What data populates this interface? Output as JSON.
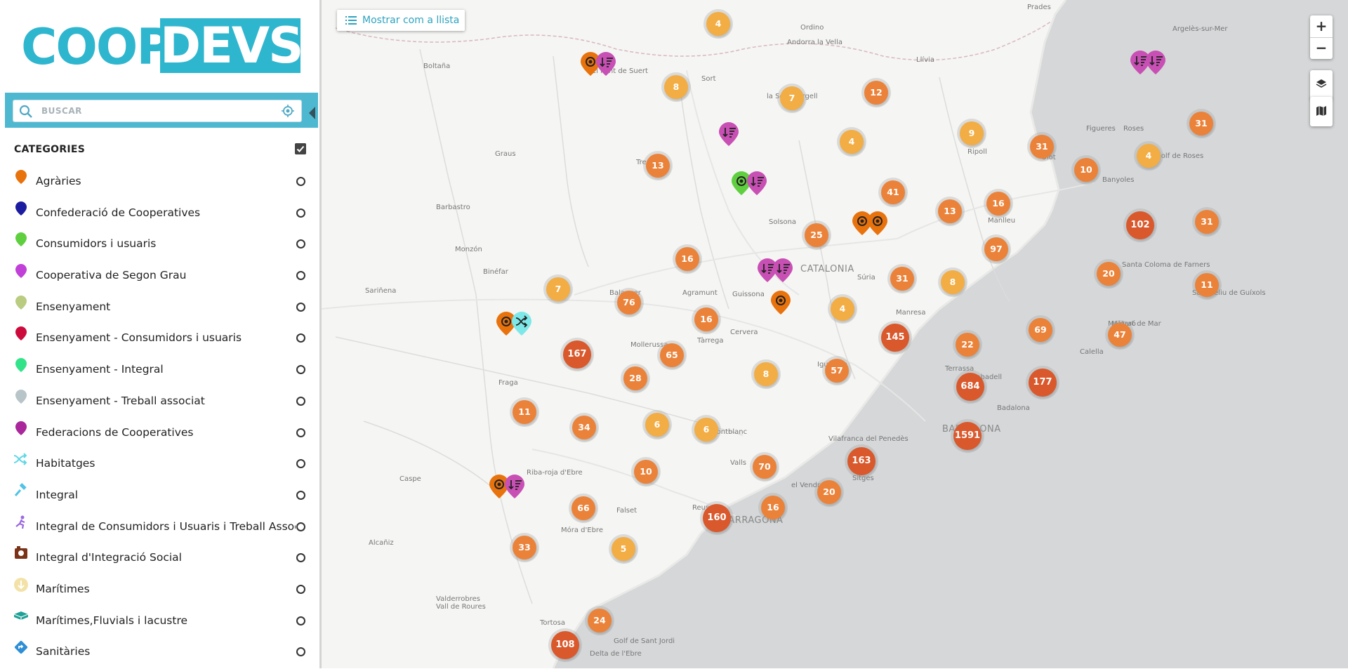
{
  "logo": {
    "left": "COOP",
    "right": "DEVS"
  },
  "search": {
    "placeholder": "BUSCAR"
  },
  "categories": {
    "title": "CATEGORIES",
    "items": [
      {
        "label": "Agràries",
        "icon": "pin-orange-icon",
        "color": "#e8720c"
      },
      {
        "label": "Confederació de Cooperatives",
        "icon": "pin-navy-icon",
        "color": "#1c1ca0"
      },
      {
        "label": "Consumidors i usuaris",
        "icon": "pin-green-icon",
        "color": "#5fcf3f"
      },
      {
        "label": "Cooperativa de Segon Grau",
        "icon": "pin-purple-icon",
        "color": "#c040d8"
      },
      {
        "label": "Ensenyament",
        "icon": "pin-olive-icon",
        "color": "#b9cc7f"
      },
      {
        "label": "Ensenyament - Consumidors i usuaris",
        "icon": "pin-crimson-icon",
        "color": "#cc0b3c"
      },
      {
        "label": "Ensenyament - Integral",
        "icon": "pin-mint-icon",
        "color": "#32e38a"
      },
      {
        "label": "Ensenyament - Treball associat",
        "icon": "pin-gray-icon",
        "color": "#b7c4c8"
      },
      {
        "label": "Federacions de Cooperatives",
        "icon": "pin-magenta-icon",
        "color": "#a9279b"
      },
      {
        "label": "Habitatges",
        "icon": "shuffle-icon",
        "color": "#5fd7e6"
      },
      {
        "label": "Integral",
        "icon": "gavel-icon",
        "color": "#4fc3e8"
      },
      {
        "label": "Integral de Consumidors i Usuaris i Treball Associat",
        "icon": "runner-icon",
        "color": "#9a67e0"
      },
      {
        "label": "Integral d'Integració Social",
        "icon": "camera-icon",
        "color": "#7a3319"
      },
      {
        "label": "Marítimes",
        "icon": "anchor-circle-icon",
        "color": "#f3e2a7"
      },
      {
        "label": "Marítimes,Fluvials i lacustre",
        "icon": "boat-icon",
        "color": "#1fa196"
      },
      {
        "label": "Sanitàries",
        "icon": "diamond-arrow-icon",
        "color": "#2e8fd6"
      }
    ]
  },
  "map": {
    "list_button": "Mostrar com a llista",
    "zoom_in": "+",
    "zoom_out": "−",
    "labels": [
      "Prades",
      "Ordino",
      "Andorra la Vella",
      "Argelès-sur-Mer",
      "Boltaña",
      "el Pont de Suert",
      "Sort",
      "la Seu d'Urgell",
      "Llívia",
      "Graus",
      "Tremp",
      "Ripoll",
      "Figueres",
      "Roses",
      "Golf de Roses",
      "Olot",
      "Banyoles",
      "Barbastro",
      "Manlleu",
      "Solsona",
      "CATALONIA",
      "Monzón",
      "Binéfar",
      "Sariñena",
      "Balaguer",
      "Agramunt",
      "Guissona",
      "Súria",
      "Manresa",
      "Santa Coloma de Farners",
      "Sant Feliu de Guíxols",
      "Mollerussa",
      "Tàrrega",
      "Cervera",
      "Igualada",
      "Terrassa",
      "Sabadell",
      "Mataró",
      "Calella",
      "Badalona",
      "BARCELONA",
      "Fraga",
      "Vilafranca del Penedès",
      "Valls",
      "el Vendrell",
      "Sitges",
      "Caspe",
      "Riba-roja d'Ebre",
      "Falset",
      "Reus",
      "TARRAGONA",
      "Móra d'Ebre",
      "Alcañiz",
      "Valderrobres",
      "Vall de Roures",
      "Tortosa",
      "Delta de l'Ebre",
      "Golf de Sant Jordi",
      "Montblanc",
      "Malgrat de Mar"
    ],
    "clusters": [
      "4",
      "8",
      "7",
      "12",
      "9",
      "31",
      "4",
      "13",
      "4",
      "31",
      "10",
      "41",
      "13",
      "16",
      "102",
      "31",
      "25",
      "97",
      "16",
      "31",
      "8",
      "20",
      "11",
      "7",
      "76",
      "16",
      "4",
      "145",
      "69",
      "47",
      "167",
      "65",
      "28",
      "8",
      "57",
      "22",
      "684",
      "177",
      "11",
      "34",
      "6",
      "6",
      "1591",
      "163",
      "70",
      "10",
      "20",
      "66",
      "16",
      "160",
      "33",
      "5",
      "24",
      "108"
    ]
  }
}
